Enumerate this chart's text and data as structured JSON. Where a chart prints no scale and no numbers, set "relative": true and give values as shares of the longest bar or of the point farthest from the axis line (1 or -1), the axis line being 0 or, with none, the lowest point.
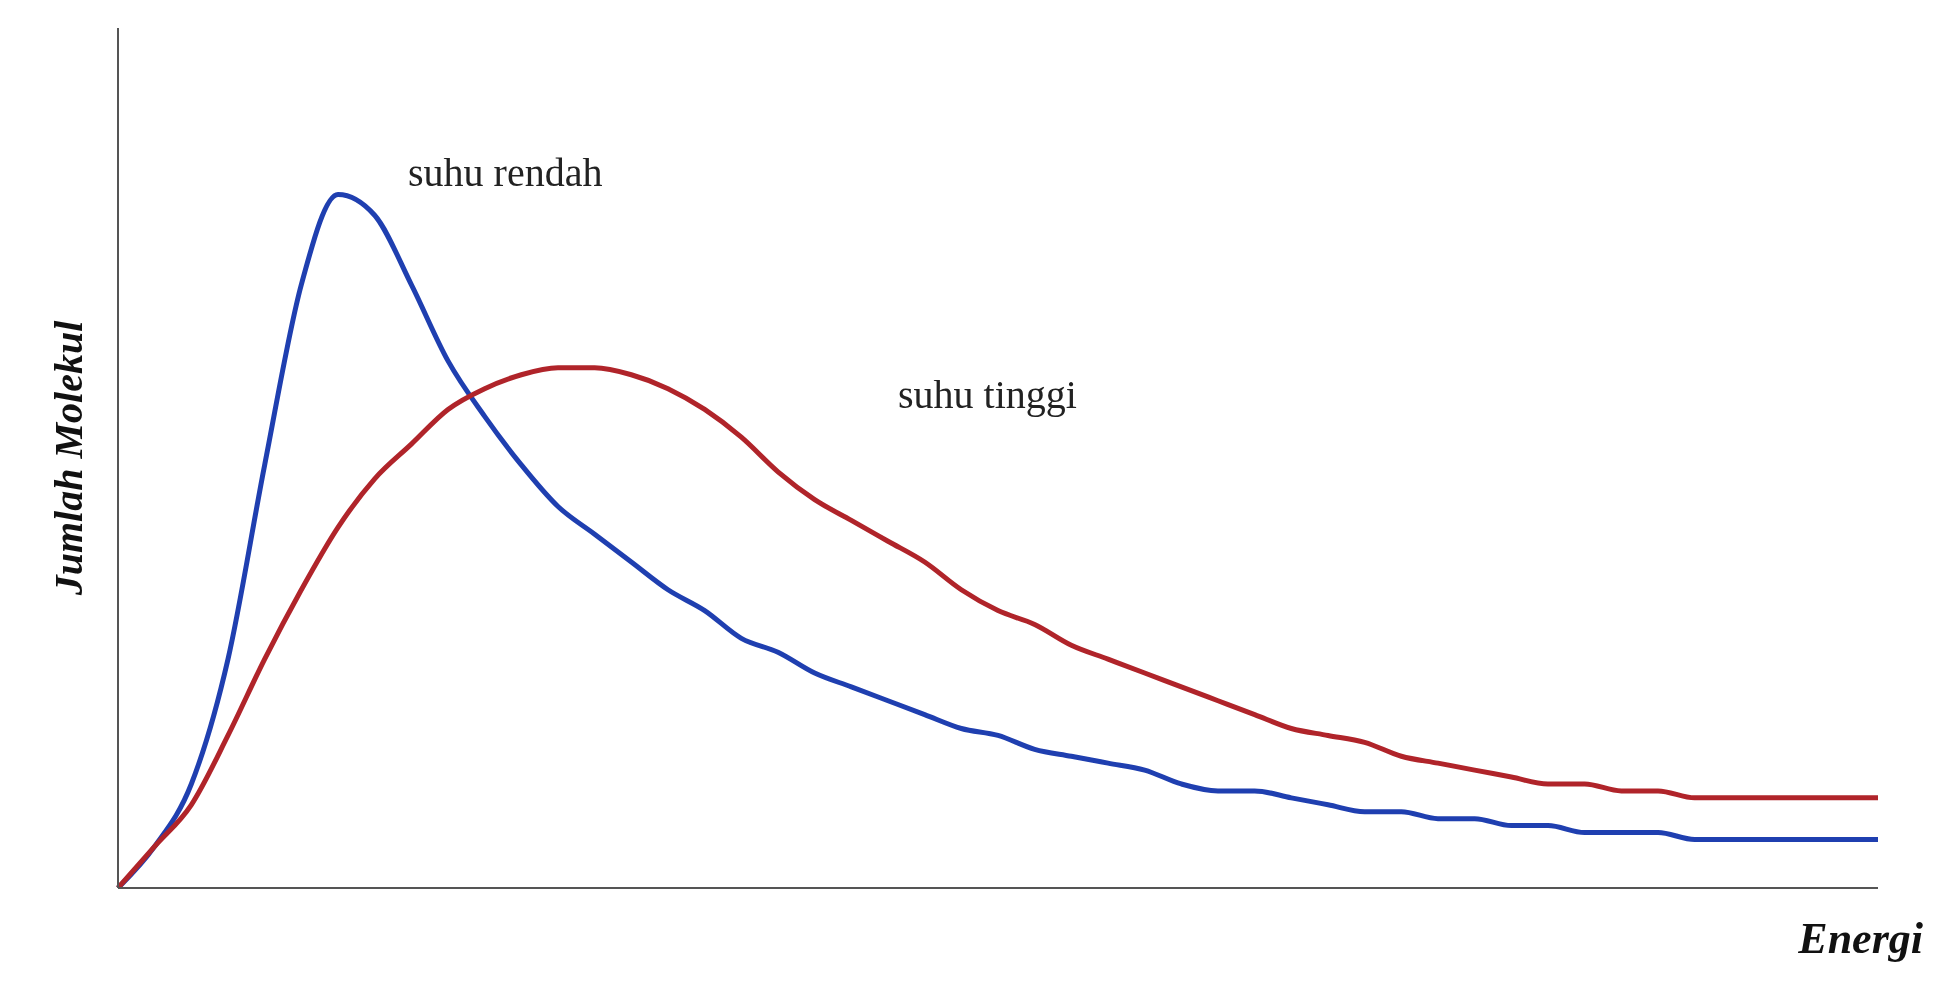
{
  "chart_data": {
    "type": "line",
    "relative": true,
    "xlabel": "Energi",
    "ylabel": "Jumlah Molekul",
    "grid": false,
    "legend": false,
    "marker": "none",
    "line_style": "solid",
    "categories": [
      null,
      null,
      null,
      null,
      null,
      null,
      null,
      null,
      null,
      null,
      null,
      null,
      null,
      null,
      null,
      null,
      null,
      null,
      null,
      null,
      null,
      null,
      null,
      null,
      null,
      null,
      null,
      null,
      null,
      null,
      null,
      null,
      null,
      null,
      null,
      null,
      null,
      null,
      null,
      null,
      null,
      null,
      null,
      null,
      null,
      null,
      null,
      null,
      null
    ],
    "series": [
      {
        "name": "suhu rendah",
        "color": "#1f3fb0",
        "values": [
          0,
          0.06,
          0.15,
          0.33,
          0.61,
          0.87,
          1,
          0.97,
          0.87,
          0.76,
          0.68,
          0.61,
          0.55,
          0.51,
          0.47,
          0.43,
          0.4,
          0.36,
          0.34,
          0.31,
          0.29,
          0.27,
          0.25,
          0.23,
          0.22,
          0.2,
          0.19,
          0.18,
          0.17,
          0.15,
          0.14,
          0.14,
          0.13,
          0.12,
          0.11,
          0.11,
          0.1,
          0.1,
          0.09,
          0.09,
          0.08,
          0.08,
          0.08,
          0.07,
          0.07,
          0.07,
          0.07,
          0.07,
          0.07
        ]
      },
      {
        "name": "suhu tinggi",
        "color": "#b0242a",
        "values": [
          0,
          0.06,
          0.12,
          0.22,
          0.33,
          0.43,
          0.52,
          0.59,
          0.64,
          0.69,
          0.72,
          0.74,
          0.75,
          0.75,
          0.74,
          0.72,
          0.69,
          0.65,
          0.6,
          0.56,
          0.53,
          0.5,
          0.47,
          0.43,
          0.4,
          0.38,
          0.35,
          0.33,
          0.31,
          0.29,
          0.27,
          0.25,
          0.23,
          0.22,
          0.21,
          0.19,
          0.18,
          0.17,
          0.16,
          0.15,
          0.15,
          0.14,
          0.14,
          0.13,
          0.13,
          0.13,
          0.13,
          0.13,
          0.13
        ]
      }
    ]
  }
}
